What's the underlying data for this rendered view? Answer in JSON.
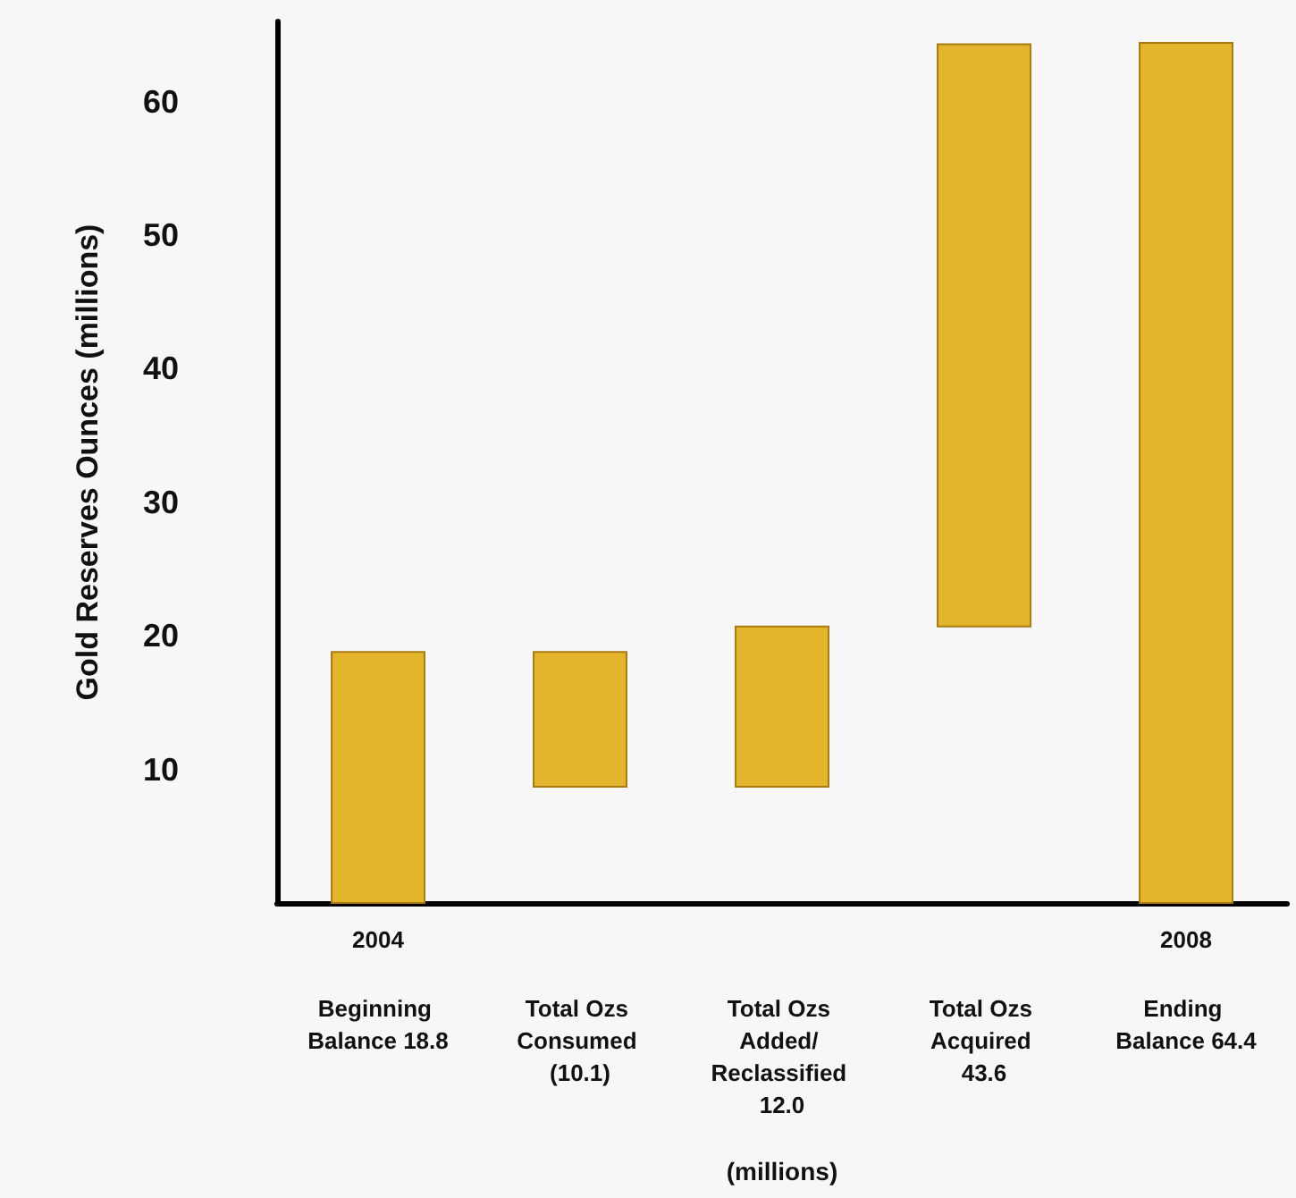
{
  "chart_data": {
    "type": "bar",
    "ylabel": "Gold Reserves Ounces (millions)",
    "xlabel": "(millions)",
    "categories": [
      "Beginning Balance 18.8",
      "Total Ozs Consumed (10.1)",
      "Total Ozs Added/ Reclassified 12.0",
      "Total Ozs Acquired 43.6",
      "Ending Balance 64.4"
    ],
    "values": [
      18.8,
      -10.1,
      12.0,
      43.6,
      64.4
    ],
    "base": [
      0,
      18.8,
      8.7,
      20.7,
      0
    ],
    "color": "#e2b52c",
    "ylim": [
      0,
      66
    ],
    "yticks": [
      10,
      20,
      30,
      40,
      50,
      60
    ],
    "annotations": [
      "2004",
      "2008"
    ],
    "grid": false
  }
}
